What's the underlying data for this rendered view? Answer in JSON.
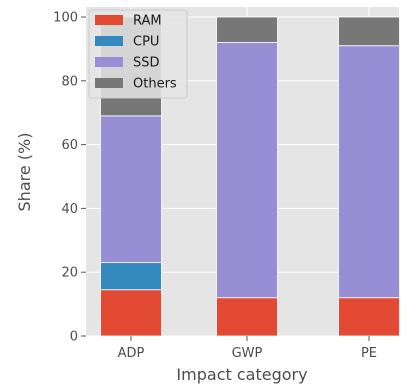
{
  "chart_data": {
    "type": "bar",
    "stacked": true,
    "title": "",
    "xlabel": "Impact category",
    "ylabel": "Share (%)",
    "categories": [
      "ADP",
      "GWP",
      "PE"
    ],
    "ylim": [
      0,
      100
    ],
    "yticks": [
      0,
      20,
      40,
      60,
      80,
      100
    ],
    "grid": true,
    "legend_position": "top-left",
    "series": [
      {
        "name": "RAM",
        "color": "#E24A33",
        "values": [
          14.5,
          12,
          12
        ]
      },
      {
        "name": "CPU",
        "color": "#348ABD",
        "values": [
          8.5,
          0,
          0
        ]
      },
      {
        "name": "SSD",
        "color": "#988ED5",
        "values": [
          46,
          80,
          79
        ]
      },
      {
        "name": "Others",
        "color": "#777777",
        "values": [
          31,
          8,
          9
        ]
      }
    ]
  }
}
